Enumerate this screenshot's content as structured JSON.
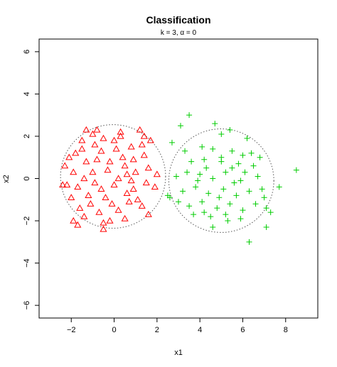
{
  "chart_data": {
    "type": "scatter",
    "title": "Classification",
    "subtitle": "k = 3, α = 0",
    "xlabel": "x1",
    "ylabel": "x2",
    "xlim": [
      -3.5,
      9.5
    ],
    "ylim": [
      -6.6,
      6.6
    ],
    "xticks": [
      -2,
      0,
      2,
      4,
      6,
      8
    ],
    "yticks": [
      -6,
      -4,
      -2,
      0,
      2,
      4,
      6
    ],
    "grid": false,
    "colors": {
      "class1": "#ff0000",
      "class2": "#00cc00",
      "boundary": "#555555"
    },
    "circles": [
      {
        "cx": -0.05,
        "cy": 0.1,
        "r": 2.45
      },
      {
        "cx": 5.0,
        "cy": -0.1,
        "r": 2.45
      }
    ],
    "series": [
      {
        "marker": "triangle",
        "points": [
          [
            -2.3,
            0.6
          ],
          [
            -1.3,
            2.3
          ],
          [
            -0.8,
            2.3
          ],
          [
            -1.0,
            2.1
          ],
          [
            0.3,
            2.2
          ],
          [
            1.2,
            2.3
          ],
          [
            1.4,
            2.0
          ],
          [
            -1.5,
            1.8
          ],
          [
            -0.5,
            1.9
          ],
          [
            0.8,
            1.5
          ],
          [
            1.3,
            1.6
          ],
          [
            -1.8,
            1.2
          ],
          [
            -0.6,
            1.3
          ],
          [
            0.1,
            1.4
          ],
          [
            -1.3,
            0.8
          ],
          [
            -0.8,
            0.9
          ],
          [
            0.9,
            0.9
          ],
          [
            -1.9,
            0.3
          ],
          [
            -0.3,
            0.4
          ],
          [
            0.5,
            0.6
          ],
          [
            1.6,
            0.5
          ],
          [
            -1.7,
            -0.4
          ],
          [
            -0.9,
            -0.2
          ],
          [
            0.0,
            -0.3
          ],
          [
            0.8,
            -0.1
          ],
          [
            1.5,
            -0.2
          ],
          [
            -2.0,
            -0.9
          ],
          [
            -1.2,
            -0.8
          ],
          [
            -0.4,
            -0.9
          ],
          [
            0.6,
            -0.7
          ],
          [
            1.1,
            -1.0
          ],
          [
            -1.6,
            -1.4
          ],
          [
            -0.7,
            -1.6
          ],
          [
            0.2,
            -1.5
          ],
          [
            1.3,
            -1.3
          ],
          [
            -1.9,
            -2.0
          ],
          [
            -1.7,
            -2.2
          ],
          [
            -0.5,
            -2.1
          ],
          [
            -0.5,
            -2.4
          ],
          [
            0.5,
            -1.9
          ],
          [
            -0.2,
            -2.0
          ],
          [
            1.6,
            -1.7
          ],
          [
            -2.2,
            -0.3
          ],
          [
            -2.4,
            -0.3
          ],
          [
            1.9,
            -0.4
          ],
          [
            2.0,
            0.2
          ],
          [
            -1.0,
            0.3
          ],
          [
            -0.2,
            0.8
          ],
          [
            0.4,
            1.0
          ],
          [
            1.0,
            0.3
          ],
          [
            -1.4,
            0.0
          ],
          [
            -0.6,
            -0.5
          ],
          [
            0.2,
            0.0
          ],
          [
            0.9,
            -0.5
          ],
          [
            -1.1,
            -1.2
          ],
          [
            -0.1,
            -1.2
          ],
          [
            0.7,
            -1.1
          ],
          [
            1.4,
            1.1
          ],
          [
            -1.5,
            1.4
          ],
          [
            -0.9,
            1.6
          ],
          [
            0.0,
            1.8
          ],
          [
            1.7,
            1.8
          ],
          [
            -2.1,
            1.0
          ],
          [
            -1.4,
            -1.8
          ],
          [
            0.3,
            2.0
          ],
          [
            0.6,
            0.2
          ]
        ]
      },
      {
        "marker": "plus",
        "points": [
          [
            3.5,
            3.0
          ],
          [
            3.1,
            2.5
          ],
          [
            4.7,
            2.6
          ],
          [
            5.0,
            2.1
          ],
          [
            5.4,
            2.3
          ],
          [
            6.2,
            1.9
          ],
          [
            2.7,
            1.7
          ],
          [
            3.3,
            1.3
          ],
          [
            4.1,
            1.5
          ],
          [
            4.6,
            1.4
          ],
          [
            5.5,
            1.3
          ],
          [
            6.0,
            1.1
          ],
          [
            6.4,
            1.2
          ],
          [
            3.6,
            0.8
          ],
          [
            4.2,
            0.9
          ],
          [
            5.0,
            1.0
          ],
          [
            5.8,
            0.7
          ],
          [
            6.5,
            0.6
          ],
          [
            8.5,
            0.4
          ],
          [
            2.9,
            0.1
          ],
          [
            3.4,
            0.3
          ],
          [
            4.0,
            0.2
          ],
          [
            4.6,
            0.0
          ],
          [
            5.2,
            0.3
          ],
          [
            5.9,
            -0.1
          ],
          [
            6.7,
            0.1
          ],
          [
            7.7,
            -0.4
          ],
          [
            3.2,
            -0.6
          ],
          [
            3.8,
            -0.4
          ],
          [
            4.4,
            -0.7
          ],
          [
            5.1,
            -0.5
          ],
          [
            5.7,
            -0.8
          ],
          [
            6.3,
            -0.6
          ],
          [
            7.0,
            -0.9
          ],
          [
            3.5,
            -1.3
          ],
          [
            4.1,
            -1.1
          ],
          [
            4.8,
            -1.4
          ],
          [
            5.4,
            -1.2
          ],
          [
            6.0,
            -1.5
          ],
          [
            6.6,
            -1.2
          ],
          [
            3.7,
            -1.7
          ],
          [
            4.5,
            -1.8
          ],
          [
            5.2,
            -1.7
          ],
          [
            5.9,
            -1.9
          ],
          [
            4.6,
            -2.3
          ],
          [
            5.3,
            -2.0
          ],
          [
            7.1,
            -1.4
          ],
          [
            7.3,
            -1.6
          ],
          [
            7.1,
            -2.3
          ],
          [
            6.3,
            -3.0
          ],
          [
            2.5,
            -0.8
          ],
          [
            2.6,
            -0.9
          ],
          [
            4.3,
            0.5
          ],
          [
            5.5,
            0.5
          ],
          [
            6.1,
            0.3
          ],
          [
            4.9,
            -0.9
          ],
          [
            3.9,
            -0.1
          ],
          [
            5.6,
            -0.2
          ],
          [
            6.9,
            -0.5
          ],
          [
            4.2,
            -1.6
          ],
          [
            5.0,
            0.8
          ],
          [
            6.8,
            1.0
          ],
          [
            3.0,
            -1.1
          ]
        ]
      }
    ]
  }
}
